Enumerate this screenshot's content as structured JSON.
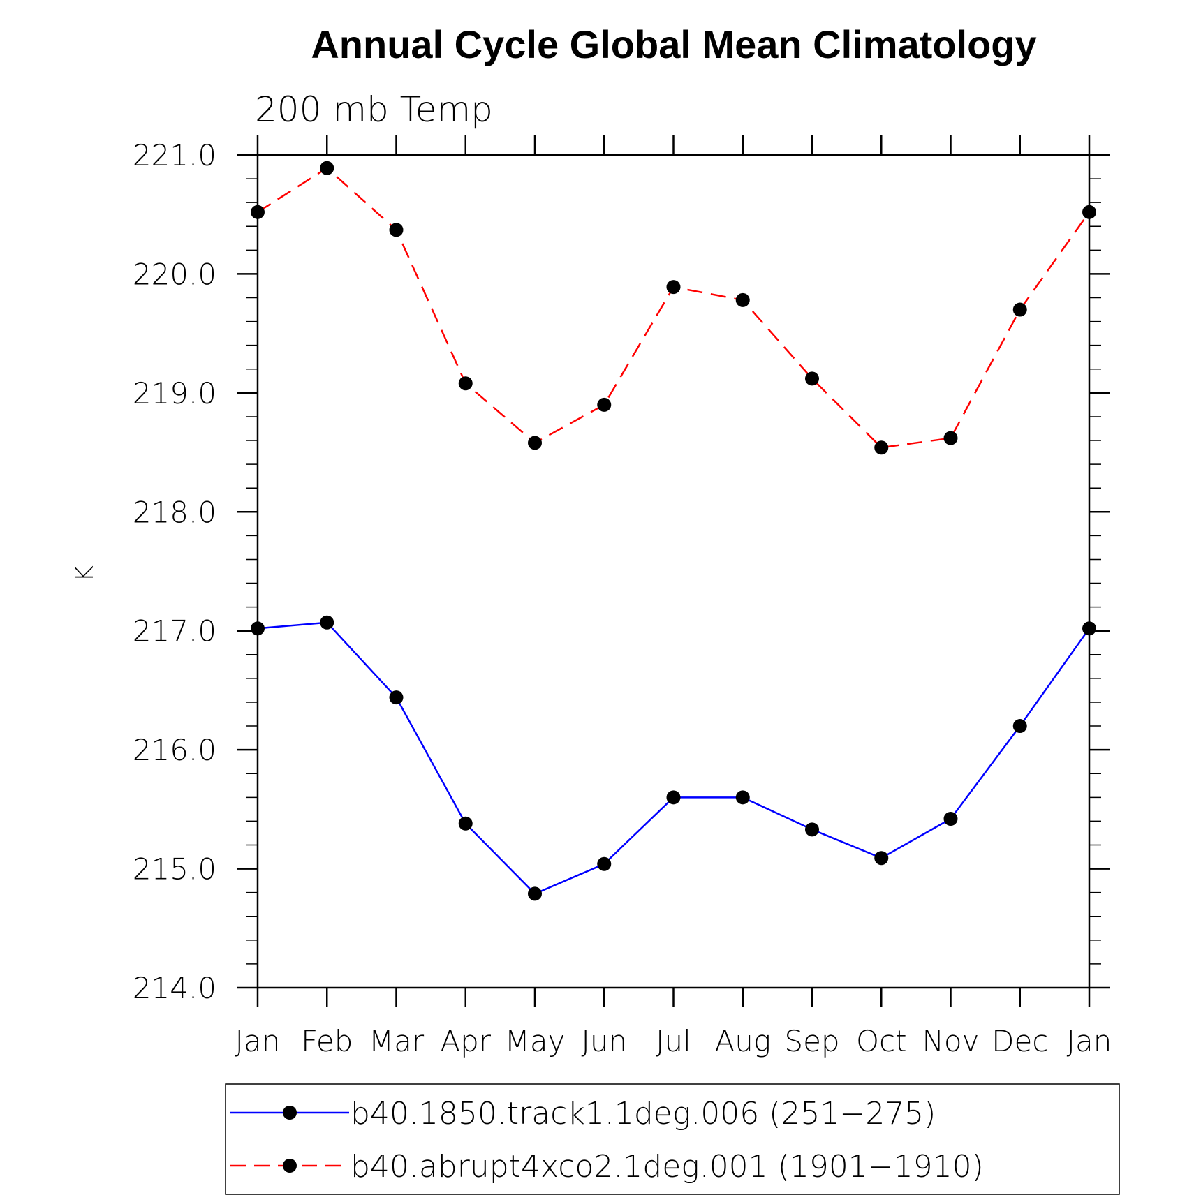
{
  "chart_data": {
    "type": "line",
    "title": "Annual Cycle Global Mean Climatology",
    "subtitle": "200 mb Temp",
    "xlabel": "",
    "ylabel": "K",
    "categories": [
      "Jan",
      "Feb",
      "Mar",
      "Apr",
      "May",
      "Jun",
      "Jul",
      "Aug",
      "Sep",
      "Oct",
      "Nov",
      "Dec",
      "Jan"
    ],
    "ylim": [
      214.0,
      221.0
    ],
    "yticks": [
      "214.0",
      "215.0",
      "216.0",
      "217.0",
      "218.0",
      "219.0",
      "220.0",
      "221.0"
    ],
    "grid": false,
    "legend_position": "bottom",
    "series": [
      {
        "name": "b40.1850.track1.1deg.006 (251−275)",
        "color": "#0000ff",
        "line_style": "solid",
        "marker": "filled-circle",
        "values": [
          217.02,
          217.07,
          216.44,
          215.38,
          214.79,
          215.04,
          215.6,
          215.6,
          215.33,
          215.09,
          215.42,
          216.2,
          217.02
        ]
      },
      {
        "name": "b40.abrupt4xco2.1deg.001 (1901−1910)",
        "color": "#ff0000",
        "line_style": "dashed",
        "marker": "filled-circle",
        "values": [
          220.52,
          220.89,
          220.37,
          219.08,
          218.58,
          218.9,
          219.89,
          219.78,
          219.12,
          218.54,
          218.62,
          219.7,
          220.52
        ]
      }
    ]
  }
}
